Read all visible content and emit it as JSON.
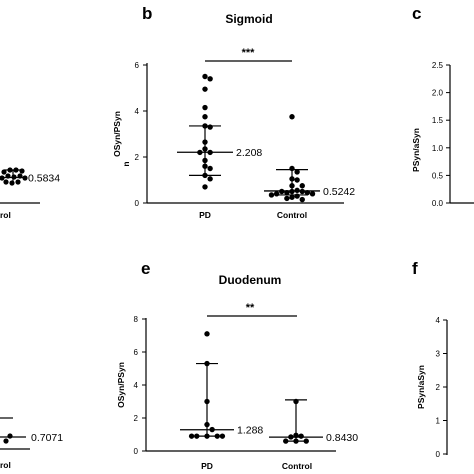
{
  "chart_data": [
    {
      "id": "a",
      "type": "scatter",
      "panel_letter": "",
      "title": "",
      "xlabel": "",
      "ylabel": "",
      "categories": [
        "",
        "Control"
      ],
      "category_labels_visible": [
        "",
        "rol"
      ],
      "median_label": "0.5834"
    },
    {
      "id": "b",
      "type": "scatter",
      "panel_letter": "b",
      "title": "Sigmoid",
      "xlabel": "",
      "ylabel": "OSyn/PSyn",
      "ylabel_extra": "n",
      "ylim": [
        0,
        6
      ],
      "yticks": [
        "0",
        "2",
        "4",
        "6"
      ],
      "categories": [
        "PD",
        "Control"
      ],
      "significance": "***",
      "median_labels": [
        "2.208",
        "0.5242"
      ],
      "series": [
        {
          "category": "PD",
          "median": 2.208,
          "q1": 1.2,
          "q3": 3.35,
          "values": [
            5.5,
            5.4,
            4.95,
            4.15,
            3.75,
            3.35,
            3.3,
            2.65,
            2.35,
            2.2,
            2.2,
            1.85,
            1.6,
            1.5,
            1.2,
            1.05,
            0.7
          ]
        },
        {
          "category": "Control",
          "median": 0.5242,
          "q1": 0.35,
          "q3": 1.45,
          "values": [
            3.75,
            1.5,
            1.35,
            1.05,
            1.0,
            0.75,
            0.75,
            0.55,
            0.5,
            0.5,
            0.5,
            0.45,
            0.45,
            0.4,
            0.4,
            0.35,
            0.3,
            0.25,
            0.2,
            0.15
          ]
        }
      ]
    },
    {
      "id": "c",
      "type": "scatter",
      "panel_letter": "c",
      "title": "",
      "xlabel": "",
      "ylabel": "PSyn/aSyn",
      "ylim": [
        0,
        2.5
      ],
      "yticks": [
        "0.0",
        "0.5",
        "1.0",
        "1.5",
        "2.0",
        "2.5"
      ]
    },
    {
      "id": "d",
      "type": "scatter",
      "panel_letter": "",
      "title": "",
      "xlabel": "",
      "ylabel": "",
      "categories": [
        "",
        "Control"
      ],
      "category_labels_visible": [
        "",
        "rol"
      ],
      "median_label": "0.7071"
    },
    {
      "id": "e",
      "type": "scatter",
      "panel_letter": "e",
      "title": "Duodenum",
      "xlabel": "",
      "ylabel": "OSyn/PSyn",
      "ylim": [
        0,
        8
      ],
      "yticks": [
        "0",
        "2",
        "4",
        "6",
        "8"
      ],
      "categories": [
        "PD",
        "Control"
      ],
      "significance": "**",
      "median_labels": [
        "1.288",
        "0.8430"
      ],
      "series": [
        {
          "category": "PD",
          "median": 1.288,
          "q1": 0.9,
          "q3": 5.3,
          "values": [
            7.1,
            5.3,
            3.0,
            1.6,
            1.3,
            0.9,
            0.9,
            0.9,
            0.9,
            0.9
          ]
        },
        {
          "category": "Control",
          "median": 0.843,
          "q1": 0.6,
          "q3": 3.1,
          "values": [
            3.0,
            0.95,
            0.9,
            0.85,
            0.6,
            0.6,
            0.6
          ]
        }
      ]
    },
    {
      "id": "f",
      "type": "scatter",
      "panel_letter": "f",
      "title": "",
      "xlabel": "",
      "ylabel": "PSyn/aSyn",
      "ylim": [
        0,
        4
      ],
      "yticks": [
        "0",
        "1",
        "2",
        "3",
        "4"
      ]
    }
  ]
}
